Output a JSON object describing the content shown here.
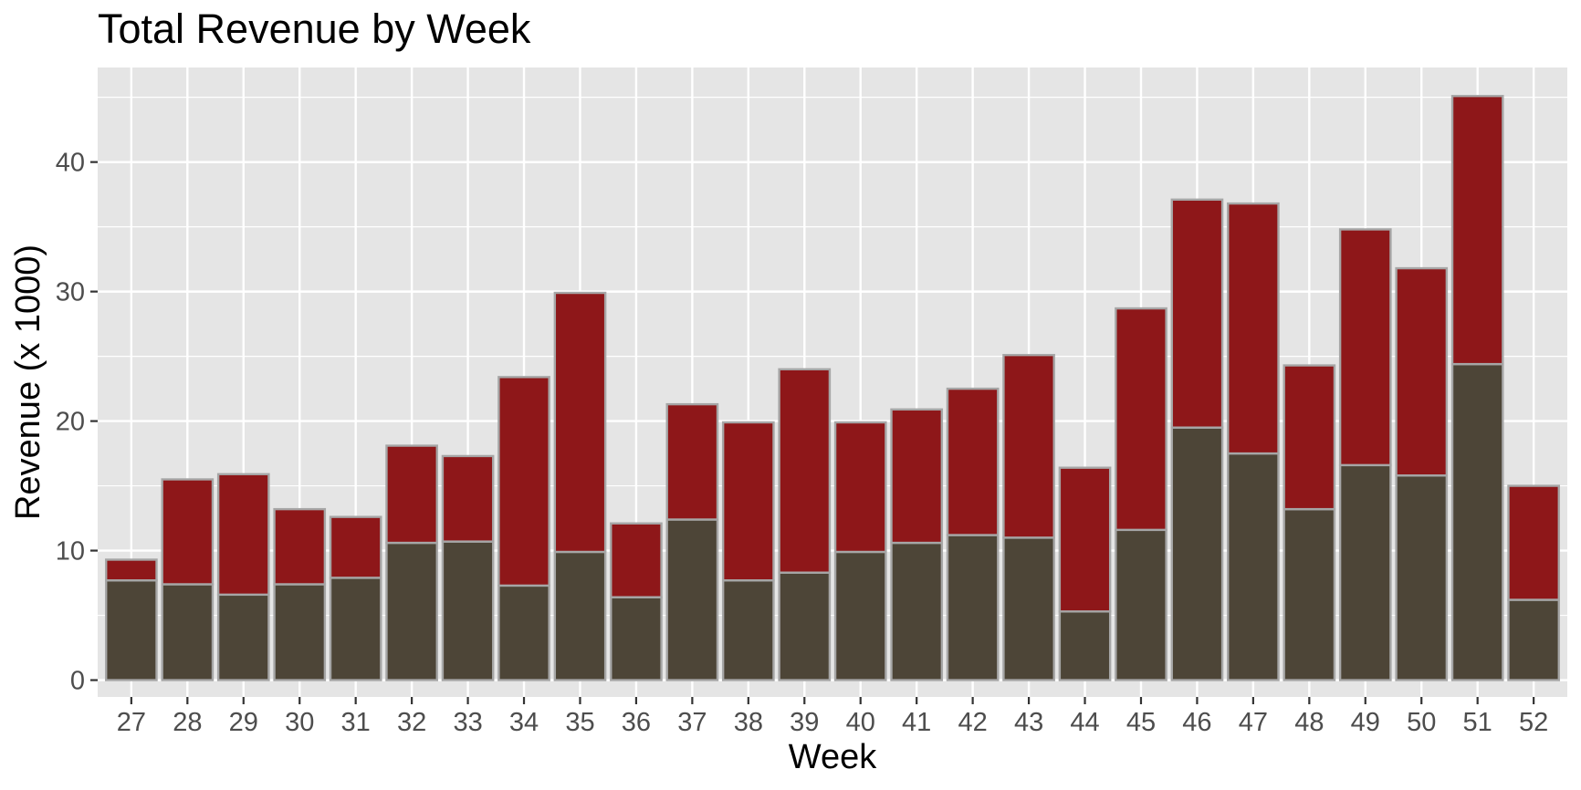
{
  "chart_data": {
    "type": "bar",
    "stacked": true,
    "title": "Total Revenue by Week",
    "xlabel": "Week",
    "ylabel": "Revenue (x 1000)",
    "categories": [
      "27",
      "28",
      "29",
      "30",
      "31",
      "32",
      "33",
      "34",
      "35",
      "36",
      "37",
      "38",
      "39",
      "40",
      "41",
      "42",
      "43",
      "44",
      "45",
      "46",
      "47",
      "48",
      "49",
      "50",
      "51",
      "52"
    ],
    "series": [
      {
        "color": "#4d4537",
        "values": [
          7.7,
          7.4,
          6.6,
          7.4,
          7.9,
          10.6,
          10.7,
          7.3,
          9.9,
          6.4,
          12.4,
          7.7,
          8.3,
          9.9,
          10.6,
          11.2,
          11.0,
          5.3,
          11.6,
          19.5,
          17.5,
          13.2,
          16.6,
          15.8,
          24.4,
          6.2
        ]
      },
      {
        "color": "#8e1719",
        "values": [
          1.6,
          8.1,
          9.3,
          5.8,
          4.7,
          7.5,
          6.6,
          16.1,
          20.0,
          5.7,
          8.9,
          12.2,
          15.7,
          10.0,
          10.3,
          11.3,
          14.1,
          11.1,
          17.1,
          17.6,
          19.3,
          11.1,
          18.2,
          16.0,
          20.7,
          8.8
        ]
      }
    ],
    "yticks": [
      0,
      10,
      20,
      30,
      40
    ],
    "ylim": [
      -1.3,
      47.3
    ],
    "grid": true,
    "panel_background": "#e5e5e5",
    "bar_outline": "#a6a6a6"
  }
}
